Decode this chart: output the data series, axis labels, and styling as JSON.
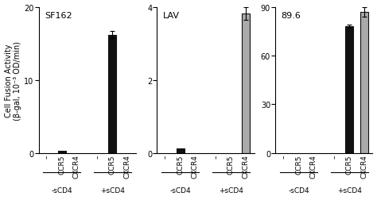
{
  "panels": [
    {
      "title": "SF162",
      "ylim": [
        0,
        20
      ],
      "yticks": [
        0,
        10,
        20
      ],
      "bar_values": [
        0,
        0.25,
        0,
        0,
        16.2,
        0
      ],
      "bar_errors": [
        0,
        0,
        0,
        0,
        0.45,
        0
      ],
      "bar_colors": [
        "#ffffff",
        "#111111",
        "#ffffff",
        "#111111",
        "#111111",
        "#111111"
      ],
      "bar_edge_colors": [
        "#111111",
        "#111111",
        "#111111",
        "#111111",
        "#111111",
        "#111111"
      ],
      "bar_visible": [
        false,
        true,
        false,
        false,
        true,
        false
      ]
    },
    {
      "title": "LAV",
      "ylim": [
        0,
        4
      ],
      "yticks": [
        0,
        2,
        4
      ],
      "bar_values": [
        0,
        0.12,
        0,
        0,
        0,
        3.82
      ],
      "bar_errors": [
        0,
        0,
        0,
        0,
        0,
        0.18
      ],
      "bar_colors": [
        "#aaaaaa",
        "#111111",
        "#aaaaaa",
        "#aaaaaa",
        "#aaaaaa",
        "#aaaaaa"
      ],
      "bar_edge_colors": [
        "#aaaaaa",
        "#111111",
        "#aaaaaa",
        "#aaaaaa",
        "#aaaaaa",
        "#111111"
      ],
      "bar_visible": [
        false,
        true,
        false,
        false,
        false,
        true
      ]
    },
    {
      "title": "89.6",
      "ylim": [
        0,
        90
      ],
      "yticks": [
        0,
        30,
        60,
        90
      ],
      "bar_values": [
        0,
        0,
        0,
        0,
        78.0,
        87.0
      ],
      "bar_errors": [
        0,
        0,
        0,
        0,
        0.8,
        3.0
      ],
      "bar_colors": [
        "#111111",
        "#111111",
        "#111111",
        "#111111",
        "#111111",
        "#aaaaaa"
      ],
      "bar_edge_colors": [
        "#111111",
        "#111111",
        "#111111",
        "#111111",
        "#111111",
        "#111111"
      ],
      "bar_visible": [
        false,
        false,
        false,
        false,
        true,
        true
      ]
    }
  ],
  "ylabel": "Cell Fusion Activity\n(β-gal, 10⁻³ OD/min)",
  "group_labels": [
    "-sCD4",
    "+sCD4"
  ],
  "bar_tick_labels": [
    "–",
    "CCR5",
    "CXCR4",
    "–",
    "CCR5",
    "CXCR4"
  ],
  "bar_width": 0.55,
  "background_color": "#ffffff",
  "fontsize": 7,
  "title_fontsize": 8
}
